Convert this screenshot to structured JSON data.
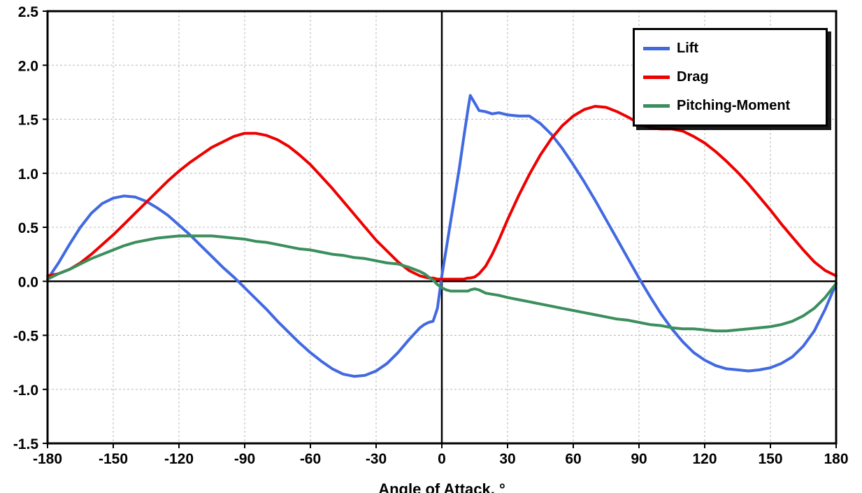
{
  "chart_data": {
    "type": "line",
    "title": "",
    "xlabel": "Angle of Attack, °",
    "ylabel": "",
    "xlim": [
      -180,
      180
    ],
    "ylim": [
      -1.5,
      2.5
    ],
    "grid": true,
    "legend_position": "top-right",
    "x_ticks": [
      -180,
      -150,
      -120,
      -90,
      -60,
      -30,
      0,
      30,
      60,
      90,
      120,
      150,
      180
    ],
    "x_tick_labels": [
      "-180",
      "-150",
      "-120",
      "-90",
      "-60",
      "-30",
      "0",
      "30",
      "60",
      "90",
      "120",
      "150",
      "180"
    ],
    "y_ticks": [
      2.5,
      2.0,
      1.5,
      1.0,
      0.5,
      0.0,
      -0.5,
      -1.0,
      -1.5
    ],
    "y_tick_labels": [
      "2.5",
      "2.0",
      "1.5",
      "1.0",
      "0.5",
      "0.0",
      "-0.5",
      "-1.0",
      "-1.5"
    ],
    "x": [
      -180,
      -175,
      -170,
      -165,
      -160,
      -155,
      -150,
      -145,
      -140,
      -135,
      -130,
      -125,
      -120,
      -115,
      -110,
      -105,
      -100,
      -95,
      -90,
      -85,
      -80,
      -75,
      -70,
      -65,
      -60,
      -55,
      -50,
      -45,
      -40,
      -35,
      -30,
      -25,
      -20,
      -15,
      -10,
      -8,
      -6,
      -4,
      -2,
      0,
      2,
      4,
      6,
      8,
      10,
      12,
      13,
      15,
      17,
      20,
      23,
      26,
      30,
      35,
      40,
      45,
      50,
      55,
      60,
      65,
      70,
      75,
      80,
      85,
      90,
      95,
      100,
      105,
      110,
      115,
      120,
      125,
      130,
      135,
      140,
      145,
      150,
      155,
      160,
      165,
      170,
      175,
      180
    ],
    "series": [
      {
        "name": "Lift",
        "color": "#4169E1",
        "values": [
          0.02,
          0.17,
          0.34,
          0.5,
          0.63,
          0.72,
          0.77,
          0.79,
          0.78,
          0.74,
          0.68,
          0.61,
          0.52,
          0.43,
          0.33,
          0.23,
          0.13,
          0.04,
          -0.06,
          -0.16,
          -0.26,
          -0.37,
          -0.47,
          -0.57,
          -0.66,
          -0.74,
          -0.81,
          -0.86,
          -0.88,
          -0.87,
          -0.83,
          -0.76,
          -0.66,
          -0.54,
          -0.43,
          -0.4,
          -0.38,
          -0.37,
          -0.25,
          0.05,
          0.3,
          0.55,
          0.8,
          1.05,
          1.33,
          1.6,
          1.72,
          1.65,
          1.58,
          1.57,
          1.55,
          1.56,
          1.54,
          1.53,
          1.53,
          1.46,
          1.36,
          1.23,
          1.08,
          0.92,
          0.75,
          0.57,
          0.39,
          0.21,
          0.03,
          -0.14,
          -0.3,
          -0.44,
          -0.56,
          -0.66,
          -0.73,
          -0.78,
          -0.81,
          -0.82,
          -0.83,
          -0.82,
          -0.8,
          -0.76,
          -0.7,
          -0.6,
          -0.46,
          -0.26,
          -0.02
        ]
      },
      {
        "name": "Drag",
        "color": "#EE0000",
        "values": [
          0.05,
          0.07,
          0.11,
          0.17,
          0.25,
          0.34,
          0.43,
          0.53,
          0.63,
          0.73,
          0.83,
          0.93,
          1.02,
          1.1,
          1.17,
          1.24,
          1.29,
          1.34,
          1.37,
          1.37,
          1.35,
          1.31,
          1.25,
          1.17,
          1.08,
          0.97,
          0.86,
          0.74,
          0.62,
          0.5,
          0.38,
          0.28,
          0.18,
          0.1,
          0.05,
          0.04,
          0.03,
          0.03,
          0.02,
          0.02,
          0.02,
          0.02,
          0.02,
          0.02,
          0.02,
          0.03,
          0.03,
          0.04,
          0.07,
          0.14,
          0.25,
          0.38,
          0.57,
          0.79,
          0.99,
          1.17,
          1.32,
          1.44,
          1.53,
          1.59,
          1.62,
          1.61,
          1.57,
          1.52,
          1.46,
          1.42,
          1.41,
          1.41,
          1.39,
          1.34,
          1.28,
          1.2,
          1.11,
          1.01,
          0.9,
          0.78,
          0.66,
          0.53,
          0.41,
          0.29,
          0.18,
          0.1,
          0.05
        ]
      },
      {
        "name": "Pitching-Moment",
        "color": "#3B8E5D",
        "values": [
          0.02,
          0.07,
          0.11,
          0.16,
          0.21,
          0.25,
          0.29,
          0.33,
          0.36,
          0.38,
          0.4,
          0.41,
          0.42,
          0.42,
          0.42,
          0.42,
          0.41,
          0.4,
          0.39,
          0.37,
          0.36,
          0.34,
          0.32,
          0.3,
          0.29,
          0.27,
          0.25,
          0.24,
          0.22,
          0.21,
          0.19,
          0.17,
          0.16,
          0.13,
          0.09,
          0.07,
          0.04,
          0.01,
          -0.03,
          -0.06,
          -0.08,
          -0.09,
          -0.09,
          -0.09,
          -0.09,
          -0.09,
          -0.08,
          -0.07,
          -0.08,
          -0.11,
          -0.12,
          -0.13,
          -0.15,
          -0.17,
          -0.19,
          -0.21,
          -0.23,
          -0.25,
          -0.27,
          -0.29,
          -0.31,
          -0.33,
          -0.35,
          -0.36,
          -0.38,
          -0.4,
          -0.41,
          -0.43,
          -0.44,
          -0.44,
          -0.45,
          -0.46,
          -0.46,
          -0.45,
          -0.44,
          -0.43,
          -0.42,
          -0.4,
          -0.37,
          -0.32,
          -0.25,
          -0.15,
          -0.02
        ]
      }
    ],
    "colors": {
      "gridline": "#b8b8b8",
      "axis": "#000000",
      "background": "#ffffff"
    }
  }
}
